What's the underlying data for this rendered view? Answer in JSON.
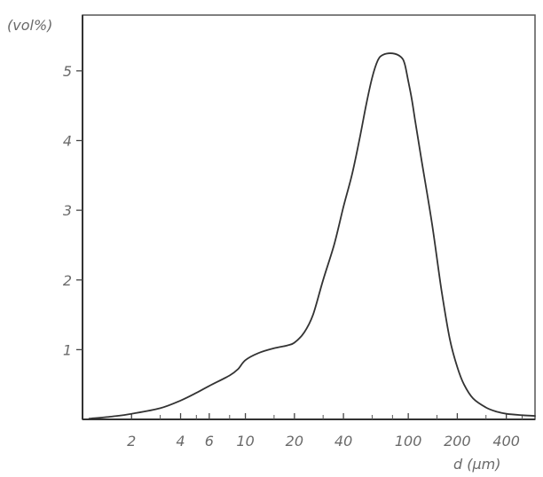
{
  "chart_data": {
    "type": "line",
    "title": "",
    "ylabel": "(vol%)",
    "xlabel": "d (µm)",
    "xscale": "log",
    "xlim": [
      1,
      600
    ],
    "ylim": [
      0,
      5.8
    ],
    "grid": false,
    "xticks": [
      {
        "value": 2,
        "label": "2"
      },
      {
        "value": 4,
        "label": "4"
      },
      {
        "value": 6,
        "label": "6"
      },
      {
        "value": 10,
        "label": "10"
      },
      {
        "value": 20,
        "label": "20"
      },
      {
        "value": 40,
        "label": "40"
      },
      {
        "value": 100,
        "label": "100"
      },
      {
        "value": 200,
        "label": "200"
      },
      {
        "value": 400,
        "label": "400"
      }
    ],
    "xminor": [
      3,
      5,
      8,
      15,
      30,
      60,
      80,
      150,
      300,
      500
    ],
    "yticks": [
      {
        "value": 1,
        "label": "1"
      },
      {
        "value": 2,
        "label": "2"
      },
      {
        "value": 3,
        "label": "3"
      },
      {
        "value": 4,
        "label": "4"
      },
      {
        "value": 5,
        "label": "5"
      }
    ],
    "series": [
      {
        "name": "",
        "color": "#333333",
        "x": [
          1.1,
          1.5,
          2,
          3,
          4,
          5,
          6,
          8,
          9,
          10,
          12,
          15,
          18,
          20,
          23,
          26,
          30,
          35,
          40,
          45,
          50,
          55,
          60,
          65,
          70,
          80,
          90,
          95,
          100,
          105,
          110,
          120,
          140,
          160,
          180,
          200,
          220,
          250,
          300,
          350,
          400,
          500,
          600
        ],
        "y": [
          0.01,
          0.04,
          0.08,
          0.16,
          0.27,
          0.38,
          0.48,
          0.63,
          0.72,
          0.85,
          0.95,
          1.02,
          1.06,
          1.1,
          1.25,
          1.5,
          2.0,
          2.5,
          3.05,
          3.5,
          4.0,
          4.5,
          4.9,
          5.15,
          5.23,
          5.25,
          5.2,
          5.1,
          4.85,
          4.6,
          4.3,
          3.75,
          2.8,
          1.85,
          1.15,
          0.75,
          0.5,
          0.3,
          0.17,
          0.11,
          0.08,
          0.06,
          0.05
        ]
      }
    ]
  }
}
